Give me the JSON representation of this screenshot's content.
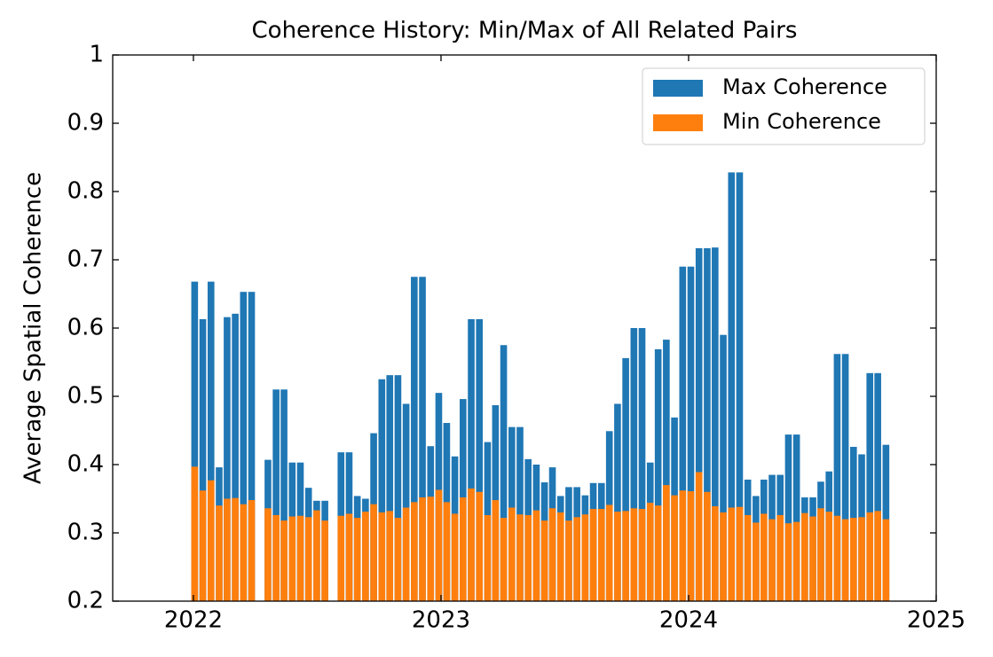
{
  "chart_data": {
    "type": "bar",
    "title": "Coherence History: Min/Max of All Related Pairs",
    "y_label": "Average Spatial Coherence",
    "x": [
      2022.005,
      2022.038,
      2022.071,
      2022.104,
      2022.136,
      2022.169,
      2022.202,
      2022.235,
      2022.301,
      2022.334,
      2022.366,
      2022.399,
      2022.432,
      2022.465,
      2022.498,
      2022.531,
      2022.596,
      2022.629,
      2022.662,
      2022.695,
      2022.728,
      2022.761,
      2022.793,
      2022.826,
      2022.859,
      2022.892,
      2022.925,
      2022.958,
      2022.991,
      2023.023,
      2023.056,
      2023.089,
      2023.122,
      2023.155,
      2023.188,
      2023.22,
      2023.253,
      2023.286,
      2023.319,
      2023.352,
      2023.385,
      2023.418,
      2023.45,
      2023.483,
      2023.516,
      2023.549,
      2023.582,
      2023.615,
      2023.648,
      2023.68,
      2023.713,
      2023.746,
      2023.779,
      2023.812,
      2023.845,
      2023.877,
      2023.91,
      2023.943,
      2023.976,
      2024.009,
      2024.042,
      2024.075,
      2024.107,
      2024.14,
      2024.173,
      2024.206,
      2024.239,
      2024.272,
      2024.304,
      2024.337,
      2024.37,
      2024.403,
      2024.436,
      2024.469,
      2024.502,
      2024.534,
      2024.567,
      2024.6,
      2024.633,
      2024.666,
      2024.699,
      2024.732,
      2024.764,
      2024.797
    ],
    "series": [
      {
        "name": "Max Coherence",
        "color": "#1f77b4",
        "values": [
          0.668,
          0.613,
          0.668,
          0.396,
          0.616,
          0.621,
          0.653,
          0.653,
          0.407,
          0.51,
          0.51,
          0.403,
          0.403,
          0.366,
          0.347,
          0.347,
          0.418,
          0.418,
          0.354,
          0.35,
          0.446,
          0.525,
          0.531,
          0.531,
          0.489,
          0.675,
          0.675,
          0.427,
          0.505,
          0.461,
          0.412,
          0.496,
          0.613,
          0.613,
          0.433,
          0.487,
          0.575,
          0.455,
          0.455,
          0.408,
          0.4,
          0.374,
          0.396,
          0.354,
          0.367,
          0.367,
          0.355,
          0.373,
          0.373,
          0.449,
          0.489,
          0.556,
          0.6,
          0.6,
          0.403,
          0.569,
          0.583,
          0.469,
          0.69,
          0.69,
          0.717,
          0.717,
          0.718,
          0.59,
          0.828,
          0.828,
          0.378,
          0.354,
          0.378,
          0.385,
          0.385,
          0.444,
          0.444,
          0.352,
          0.352,
          0.375,
          0.39,
          0.562,
          0.562,
          0.426,
          0.415,
          0.534,
          0.534,
          0.429
        ]
      },
      {
        "name": "Min Coherence",
        "color": "#ff7f0e",
        "values": [
          0.397,
          0.362,
          0.377,
          0.34,
          0.35,
          0.351,
          0.342,
          0.348,
          0.336,
          0.326,
          0.318,
          0.324,
          0.325,
          0.323,
          0.333,
          0.318,
          0.325,
          0.328,
          0.322,
          0.331,
          0.342,
          0.33,
          0.332,
          0.322,
          0.337,
          0.345,
          0.352,
          0.353,
          0.363,
          0.345,
          0.328,
          0.352,
          0.365,
          0.36,
          0.326,
          0.348,
          0.322,
          0.337,
          0.327,
          0.326,
          0.333,
          0.318,
          0.336,
          0.33,
          0.318,
          0.323,
          0.327,
          0.335,
          0.335,
          0.341,
          0.331,
          0.332,
          0.336,
          0.335,
          0.344,
          0.34,
          0.37,
          0.355,
          0.362,
          0.361,
          0.389,
          0.36,
          0.339,
          0.33,
          0.337,
          0.338,
          0.326,
          0.315,
          0.328,
          0.32,
          0.326,
          0.314,
          0.316,
          0.329,
          0.324,
          0.336,
          0.331,
          0.325,
          0.32,
          0.322,
          0.323,
          0.33,
          0.332,
          0.32
        ]
      }
    ],
    "xlim": [
      2021.674,
      2025
    ],
    "xticks": [
      2022,
      2023,
      2024,
      2025
    ],
    "ylim": [
      0.2,
      1.0
    ],
    "yticks": [
      0.2,
      0.3,
      0.4,
      0.5,
      0.6,
      0.7,
      0.8,
      0.9,
      1.0
    ],
    "grid": false,
    "legend": "upper right"
  }
}
